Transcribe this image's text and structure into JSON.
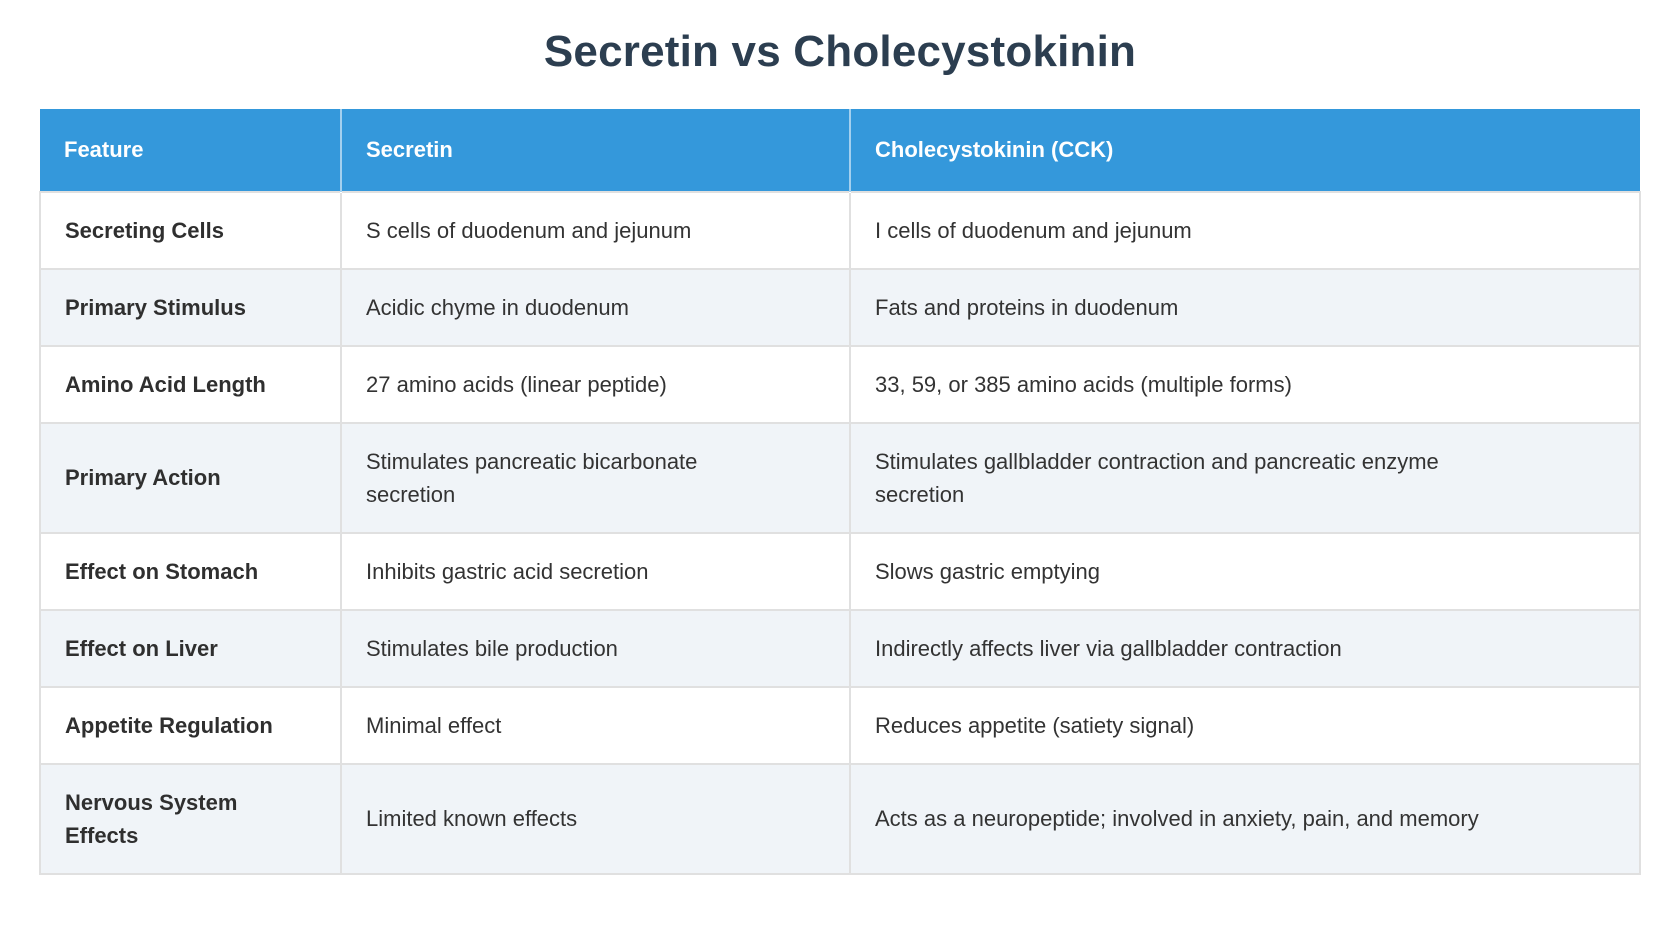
{
  "title": "Secretin vs Cholecystokinin",
  "colors": {
    "header_bg": "#3498db",
    "header_text": "#ffffff",
    "stripe_bg": "#f0f4f8",
    "border": "#e0e0e0",
    "title_text": "#2c3e50",
    "body_text": "#333333"
  },
  "table": {
    "columns": [
      "Feature",
      "Secretin",
      "Cholecystokinin (CCK)"
    ],
    "rows": [
      {
        "feature": "Secreting Cells",
        "secretin": "S cells of duodenum and jejunum",
        "cck": "I cells of duodenum and jejunum"
      },
      {
        "feature": "Primary Stimulus",
        "secretin": "Acidic chyme in duodenum",
        "cck": "Fats and proteins in duodenum"
      },
      {
        "feature": "Amino Acid Length",
        "secretin": "27 amino acids (linear peptide)",
        "cck": "33, 59, or 385 amino acids (multiple forms)"
      },
      {
        "feature": "Primary Action",
        "secretin": "Stimulates pancreatic bicarbonate\nsecretion",
        "cck": "Stimulates gallbladder contraction and pancreatic enzyme\nsecretion"
      },
      {
        "feature": "Effect on Stomach",
        "secretin": "Inhibits gastric acid secretion",
        "cck": "Slows gastric emptying"
      },
      {
        "feature": "Effect on Liver",
        "secretin": "Stimulates bile production",
        "cck": "Indirectly affects liver via gallbladder contraction"
      },
      {
        "feature": "Appetite Regulation",
        "secretin": "Minimal effect",
        "cck": "Reduces appetite (satiety signal)"
      },
      {
        "feature": "Nervous System\nEffects",
        "secretin": "Limited known effects",
        "cck": "Acts as a neuropeptide; involved in anxiety, pain, and memory"
      }
    ]
  }
}
